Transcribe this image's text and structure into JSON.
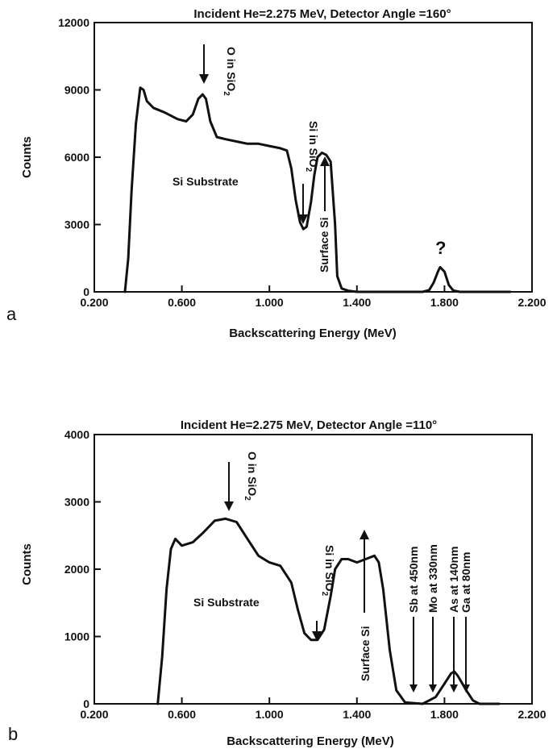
{
  "chart_data": [
    {
      "type": "line",
      "panel_label": "a",
      "title": "Incident He=2.275 MeV, Detector Angle =160°",
      "xlabel": "Backscattering Energy (MeV)",
      "ylabel": "Counts",
      "xlim": [
        0.2,
        2.2
      ],
      "ylim": [
        0,
        12000
      ],
      "x_ticks": [
        "0.200",
        "0.600",
        "1.000",
        "1.400",
        "1.800",
        "2.200"
      ],
      "y_ticks": [
        "0",
        "3000",
        "6000",
        "9000",
        "12000"
      ],
      "series": [
        {
          "x": [
            0.34,
            0.355,
            0.37,
            0.39,
            0.41,
            0.425,
            0.44,
            0.47,
            0.52,
            0.58,
            0.62,
            0.65,
            0.675,
            0.695,
            0.71,
            0.73,
            0.76,
            0.8,
            0.85,
            0.9,
            0.95,
            1.0,
            1.05,
            1.08,
            1.1,
            1.12,
            1.14,
            1.155,
            1.17,
            1.19,
            1.205,
            1.22,
            1.24,
            1.26,
            1.28,
            1.3,
            1.31,
            1.33,
            1.36,
            1.4,
            1.5,
            1.6,
            1.7,
            1.73,
            1.75,
            1.77,
            1.78,
            1.8,
            1.82,
            1.84,
            1.87,
            1.9,
            2.0,
            2.1
          ],
          "y": [
            0,
            1500,
            4500,
            7500,
            9100,
            9000,
            8500,
            8200,
            8000,
            7700,
            7600,
            7900,
            8600,
            8800,
            8600,
            7600,
            6900,
            6800,
            6700,
            6600,
            6600,
            6500,
            6400,
            6300,
            5500,
            4100,
            3100,
            2800,
            2900,
            4000,
            5200,
            6000,
            6200,
            6100,
            5800,
            3000,
            700,
            150,
            50,
            0,
            0,
            0,
            0,
            80,
            400,
            900,
            1100,
            900,
            300,
            60,
            0,
            0,
            0,
            0
          ]
        }
      ],
      "annotations": [
        {
          "text": "O in SiO",
          "sub": "2",
          "x": 0.69
        },
        {
          "text": "Si in SiO",
          "sub": "2",
          "x": 1.15
        },
        {
          "text": "Surface Si",
          "x": 1.26
        },
        {
          "text": "Si Substrate"
        },
        {
          "text": "?",
          "x": 1.78
        }
      ]
    },
    {
      "type": "line",
      "panel_label": "b",
      "title": "Incident He=2.275 MeV, Detector Angle =110°",
      "xlabel": "Backscattering Energy (MeV)",
      "ylabel": "Counts",
      "xlim": [
        0.2,
        2.2
      ],
      "ylim": [
        0,
        4000
      ],
      "x_ticks": [
        "0.200",
        "0.600",
        "1.000",
        "1.400",
        "1.800",
        "2.200"
      ],
      "y_ticks": [
        "0",
        "1000",
        "2000",
        "3000",
        "4000"
      ],
      "series": [
        {
          "x": [
            0.49,
            0.51,
            0.53,
            0.55,
            0.57,
            0.6,
            0.65,
            0.7,
            0.75,
            0.8,
            0.85,
            0.9,
            0.95,
            1.0,
            1.05,
            1.1,
            1.13,
            1.16,
            1.19,
            1.22,
            1.25,
            1.28,
            1.3,
            1.33,
            1.36,
            1.4,
            1.44,
            1.48,
            1.5,
            1.52,
            1.55,
            1.58,
            1.62,
            1.7,
            1.76,
            1.8,
            1.83,
            1.845,
            1.86,
            1.9,
            1.93,
            1.96,
            2.05
          ],
          "y": [
            0,
            700,
            1700,
            2300,
            2450,
            2350,
            2400,
            2550,
            2720,
            2750,
            2700,
            2450,
            2200,
            2100,
            2050,
            1800,
            1400,
            1050,
            950,
            950,
            1100,
            1600,
            2000,
            2150,
            2150,
            2100,
            2150,
            2200,
            2100,
            1700,
            800,
            200,
            20,
            0,
            100,
            300,
            450,
            480,
            420,
            200,
            50,
            0,
            0
          ]
        }
      ],
      "annotations": [
        {
          "text": "O in SiO",
          "sub": "2",
          "x": 0.8
        },
        {
          "text": "Si in SiO",
          "sub": "2",
          "x": 1.22
        },
        {
          "text": "Surface Si",
          "x": 1.42
        },
        {
          "text": "Si Substrate"
        },
        {
          "text": "Sb at 450nm",
          "x": 1.65
        },
        {
          "text": "Mo at 330nm",
          "x": 1.74
        },
        {
          "text": "As at 140nm",
          "x": 1.84
        },
        {
          "text": "Ga at 80nm",
          "x": 1.89
        }
      ]
    }
  ]
}
